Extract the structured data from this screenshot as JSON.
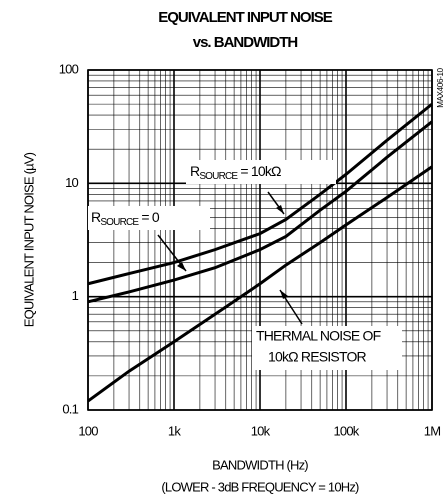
{
  "chart_data": {
    "type": "line",
    "title": "EQUIVALENT INPUT NOISE",
    "subtitle": "vs. BANDWIDTH",
    "xlabel": "BANDWIDTH (Hz)",
    "xlabel_note": "(LOWER - 3dB FREQUENCY = 10Hz)",
    "ylabel": "EQUIVALENT INPUT NOISE (µV)",
    "figure_id": "MAX406-10",
    "x": [
      100,
      300,
      1000,
      3000,
      10000,
      20000,
      50000,
      100000,
      300000,
      1000000
    ],
    "series": [
      {
        "name": "RSOURCE = 10kΩ",
        "color": "#000000",
        "values": [
          1.3,
          1.6,
          2.0,
          2.6,
          3.6,
          4.8,
          8,
          12,
          24,
          50
        ]
      },
      {
        "name": "RSOURCE = 0",
        "color": "#000000",
        "values": [
          0.9,
          1.1,
          1.4,
          1.8,
          2.6,
          3.4,
          5.8,
          8.5,
          17,
          35
        ]
      },
      {
        "name": "THERMAL NOISE OF 10kΩ RESISTOR",
        "color": "#000000",
        "values": [
          0.12,
          0.22,
          0.4,
          0.7,
          1.3,
          1.9,
          3.0,
          4.3,
          7.5,
          14
        ]
      }
    ],
    "annotations": [
      {
        "parts": [
          "R",
          "SOURCE",
          " = 10kΩ"
        ]
      },
      {
        "parts": [
          "R",
          "SOURCE",
          " = 0"
        ]
      },
      {
        "lines": [
          "THERMAL NOISE OF",
          "10kΩ RESISTOR"
        ]
      }
    ],
    "xscale": "log",
    "yscale": "log",
    "xlim": [
      100,
      1000000
    ],
    "ylim": [
      0.1,
      100
    ],
    "xticks": [
      100,
      {
        "value": 1000,
        "label": "1k"
      },
      {
        "value": 10000,
        "label": "10k"
      },
      {
        "value": 100000,
        "label": "100k"
      },
      {
        "value": 1000000,
        "label": "1M"
      }
    ],
    "yticks": [
      0.1,
      1,
      10,
      100
    ],
    "grid": true
  }
}
